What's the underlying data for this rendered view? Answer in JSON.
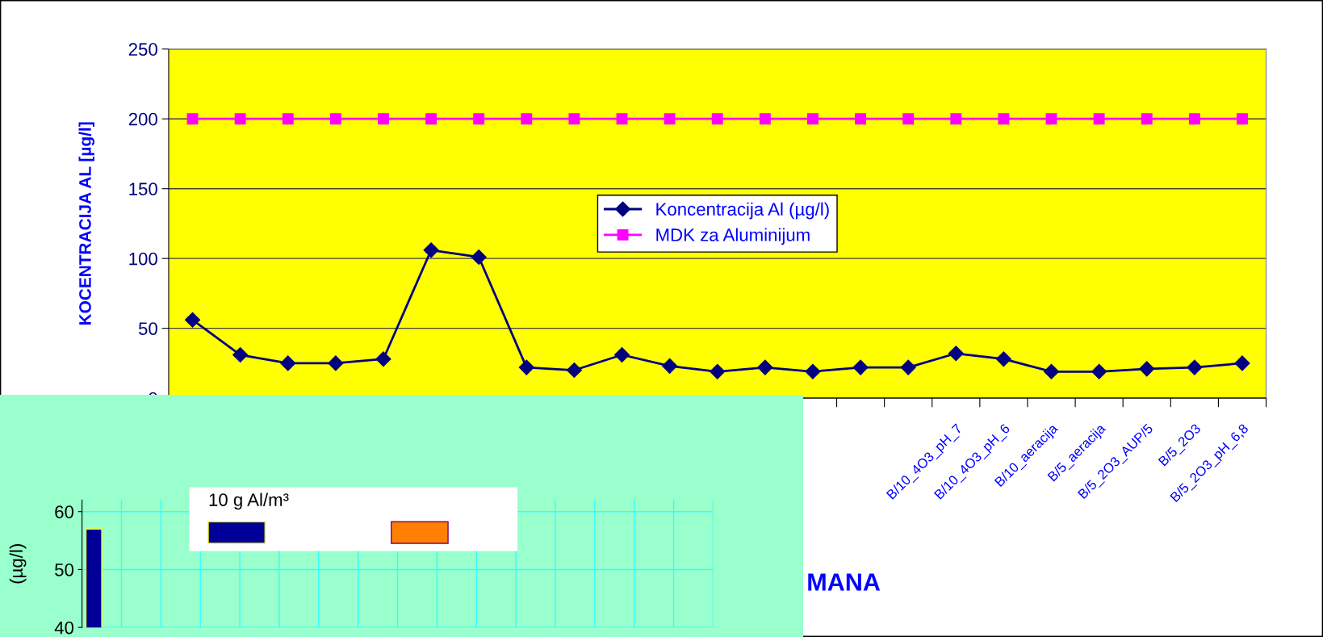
{
  "chart_data": [
    {
      "type": "line",
      "xlabel": "MANA",
      "ylabel": "KOCENTRACIJA AL [µg/l]",
      "categories": [
        null,
        null,
        null,
        null,
        null,
        null,
        null,
        null,
        null,
        null,
        null,
        null,
        null,
        null,
        null,
        null,
        "B/10_4O3_pH_7",
        "B/10_4O3_pH_6",
        "B/10_aeracija",
        "B/5_aeracija",
        "B/5_2O3_AUP/5",
        "B/5_2O3",
        "B/5_2O3_pH_6,8"
      ],
      "series": [
        {
          "name": "Koncentracija Al (µg/l)",
          "color": "#000080",
          "marker": "diamond",
          "values": [
            56,
            31,
            25,
            25,
            28,
            106,
            101,
            22,
            20,
            31,
            23,
            19,
            22,
            19,
            22,
            22,
            32,
            28,
            19,
            19,
            21,
            22,
            25
          ]
        },
        {
          "name": "MDK za Aluminijum",
          "color": "#ff00ff",
          "marker": "square",
          "values": [
            200,
            200,
            200,
            200,
            200,
            200,
            200,
            200,
            200,
            200,
            200,
            200,
            200,
            200,
            200,
            200,
            200,
            200,
            200,
            200,
            200,
            200,
            200
          ]
        }
      ],
      "ylim": [
        0,
        250
      ],
      "yticks": [
        0,
        50,
        100,
        150,
        200,
        250
      ],
      "grid": "y",
      "legend": "center"
    },
    {
      "type": "bar",
      "ylabel": "(µg/l)",
      "legend_title": "10 g Al/m³",
      "categories": [
        null,
        null,
        null,
        null,
        null,
        null,
        null,
        null,
        null,
        null,
        null,
        null,
        null,
        null,
        null,
        null
      ],
      "series": [
        {
          "color": "#000099",
          "values": [
            57,
            null,
            null,
            null,
            null,
            null,
            null,
            null,
            null,
            null,
            null,
            null,
            null,
            null,
            null,
            null
          ]
        },
        {
          "color": "#ff8000",
          "values": [
            null,
            null,
            null,
            null,
            null,
            null,
            null,
            null,
            null,
            null,
            null,
            null,
            null,
            null,
            null,
            null
          ]
        }
      ],
      "ylim": [
        40,
        62
      ],
      "yticks": [
        40,
        50,
        60
      ],
      "grid": true,
      "tick_labels": "y"
    }
  ]
}
